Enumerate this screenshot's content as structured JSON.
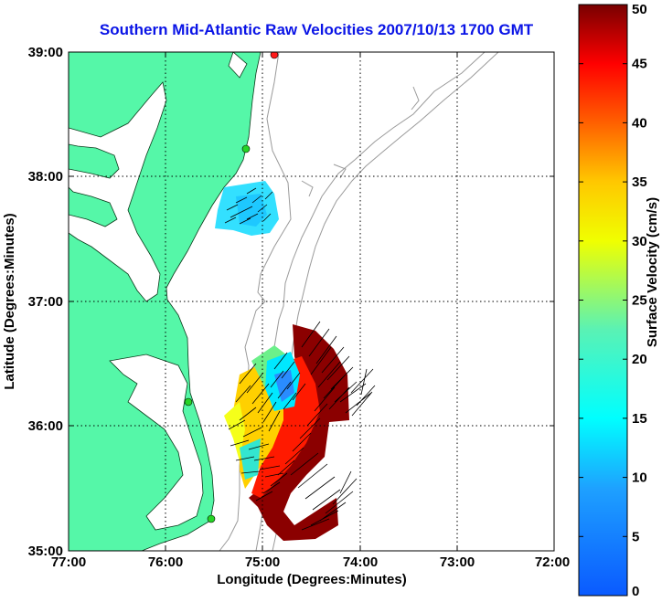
{
  "title": "Southern Mid-Atlantic Raw Velocities 2007/10/13 1700 GMT",
  "xlabel": "Longitude (Degrees:Minutes)",
  "ylabel": "Latitude (Degrees:Minutes)",
  "x_ticks": [
    "77:00",
    "76:00",
    "75:00",
    "74:00",
    "73:00",
    "72:00"
  ],
  "y_ticks": [
    "39:00",
    "38:00",
    "37:00",
    "36:00",
    "35:00"
  ],
  "colorbar": {
    "label": "Surface Velocity (cm/s)",
    "ticks": [
      "0",
      "5",
      "10",
      "15",
      "20",
      "25",
      "30",
      "35",
      "40",
      "45",
      "50"
    ],
    "min": 0,
    "max": 50
  },
  "extent": {
    "lon_min": -77,
    "lon_max": -72,
    "lat_min": 35,
    "lat_max": 39
  },
  "grid": true,
  "colors": {
    "land": "#55f7a8",
    "title": "#0a14e6",
    "bathymetry": "#9a9a9a",
    "station": "#26d426"
  }
}
